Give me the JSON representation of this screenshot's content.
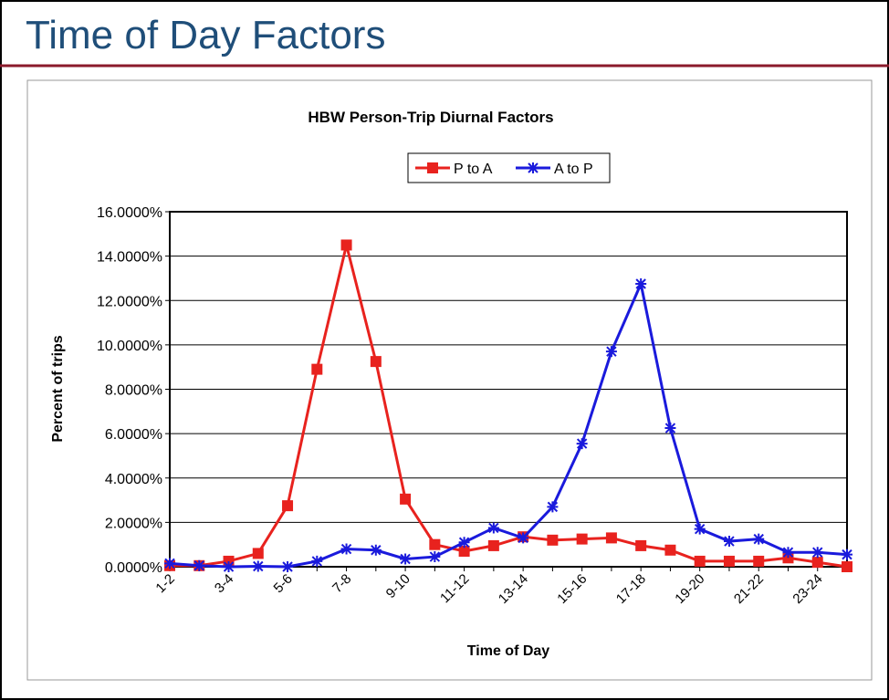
{
  "header": {
    "title": "Time of Day Factors"
  },
  "chart_data": {
    "type": "line",
    "title": "HBW Person-Trip Diurnal Factors",
    "x_label": "Time of Day",
    "y_label": "Percent of trips",
    "categories": [
      "1-2",
      null,
      "3-4",
      null,
      "5-6",
      null,
      "7-8",
      null,
      "9-10",
      null,
      "11-12",
      null,
      "13-14",
      null,
      "15-16",
      null,
      "17-18",
      null,
      "19-20",
      null,
      "21-22",
      null,
      "23-24",
      null
    ],
    "series": [
      {
        "name": "P to A",
        "color": "#e8221e",
        "marker": "square",
        "values": [
          0.05,
          0.05,
          0.25,
          0.6,
          2.75,
          8.9,
          14.5,
          9.25,
          3.05,
          1.0,
          0.7,
          0.95,
          1.35,
          1.2,
          1.25,
          1.3,
          0.95,
          0.75,
          0.25,
          0.25,
          0.25,
          0.4,
          0.2,
          0.0
        ]
      },
      {
        "name": "A to P",
        "color": "#1a1adc",
        "marker": "asterisk",
        "values": [
          0.15,
          0.05,
          0.0,
          0.02,
          0.0,
          0.25,
          0.8,
          0.75,
          0.35,
          0.45,
          1.1,
          1.75,
          1.3,
          2.7,
          5.55,
          9.7,
          12.75,
          6.25,
          1.7,
          1.15,
          1.25,
          0.65,
          0.65,
          0.55
        ]
      }
    ],
    "ylim": [
      0,
      16
    ],
    "yticks": [
      {
        "value": 0,
        "label": "0.0000%"
      },
      {
        "value": 2,
        "label": "2.0000%"
      },
      {
        "value": 4,
        "label": "4.0000%"
      },
      {
        "value": 6,
        "label": "6.0000%"
      },
      {
        "value": 8,
        "label": "8.0000%"
      },
      {
        "value": 10,
        "label": "10.0000%"
      },
      {
        "value": 12,
        "label": "12.0000%"
      },
      {
        "value": 14,
        "label": "14.0000%"
      },
      {
        "value": 16,
        "label": "16.0000%"
      }
    ],
    "grid": true,
    "legend": "top"
  }
}
